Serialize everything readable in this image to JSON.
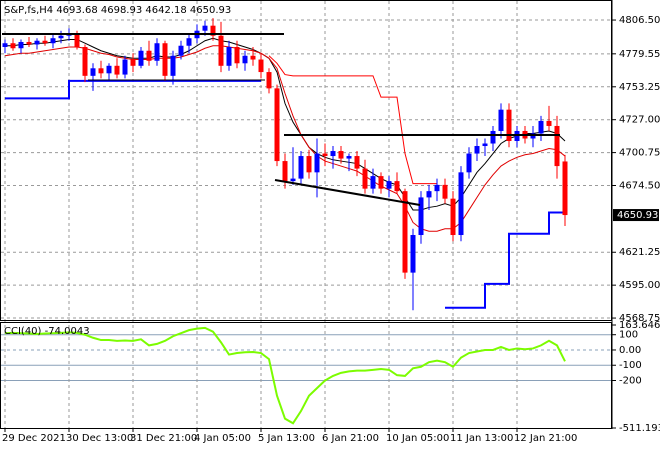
{
  "chart_data": {
    "type": "candlestick",
    "title": "S&P,fs,H4  4693.68 4698.93 4642.18 4650.93",
    "up_color": "#0000ff",
    "down_color": "#ff0000",
    "categories": [
      "29 Dec 2021",
      null,
      null,
      null,
      null,
      null,
      null,
      null,
      "30 Dec 13:00",
      null,
      null,
      null,
      null,
      null,
      null,
      null,
      "31 Dec 21:00",
      null,
      null,
      null,
      null,
      null,
      null,
      null,
      "4 Jan 05:00",
      null,
      null,
      null,
      null,
      null,
      null,
      null,
      "5 Jan 13:00",
      null,
      null,
      null,
      null,
      null,
      null,
      null,
      "6 Jan 21:00",
      null,
      null,
      null,
      null,
      null,
      null,
      null,
      "10 Jan 05:00",
      null,
      null,
      null,
      null,
      null,
      null,
      null,
      "11 Jan 13:00",
      null,
      null,
      null,
      null,
      null,
      null,
      null,
      "12 Jan 21:00",
      null,
      null,
      null,
      null,
      null,
      null
    ],
    "open": [
      4785,
      4788,
      4784,
      4789,
      4787,
      4790,
      4788,
      4792,
      4794,
      4796,
      4785,
      4762,
      4768,
      4764,
      4770,
      4763,
      4775,
      4770,
      4782,
      4774,
      4788,
      4762,
      4778,
      4786,
      4792,
      4798,
      4802,
      4794,
      4770,
      4785,
      4772,
      4778,
      4775,
      4765,
      4752,
      4694,
      4678,
      4680,
      4698,
      4685,
      4700,
      4698,
      4702,
      4696,
      4698,
      4688,
      4672,
      4682,
      4672,
      4678,
      4670,
      4605,
      4635,
      4665,
      4670,
      4675,
      4664,
      4635,
      4685,
      4700,
      4706,
      4708,
      4718,
      4735,
      4710,
      4718,
      4712,
      4716,
      4726,
      4722,
      4693.68
    ],
    "high": [
      4791,
      4792,
      4791,
      4793,
      4792,
      4794,
      4795,
      4798,
      4800,
      4798,
      4787,
      4772,
      4774,
      4772,
      4776,
      4778,
      4780,
      4785,
      4790,
      4792,
      4790,
      4782,
      4790,
      4795,
      4803,
      4806,
      4808,
      4805,
      4790,
      4790,
      4782,
      4785,
      4780,
      4768,
      4755,
      4700,
      4705,
      4702,
      4703,
      4712,
      4708,
      4706,
      4706,
      4700,
      4702,
      4695,
      4688,
      4685,
      4682,
      4685,
      4672,
      4640,
      4670,
      4675,
      4680,
      4680,
      4670,
      4690,
      4705,
      4712,
      4712,
      4722,
      4740,
      4740,
      4722,
      4722,
      4722,
      4730,
      4738,
      4730,
      4698.93
    ],
    "low": [
      4780,
      4782,
      4780,
      4785,
      4783,
      4786,
      4784,
      4788,
      4790,
      4783,
      4757,
      4750,
      4760,
      4758,
      4760,
      4760,
      4765,
      4768,
      4770,
      4770,
      4758,
      4755,
      4775,
      4780,
      4788,
      4794,
      4790,
      4765,
      4766,
      4768,
      4766,
      4770,
      4760,
      4748,
      4690,
      4672,
      4675,
      4676,
      4680,
      4665,
      4690,
      4688,
      4692,
      4686,
      4682,
      4668,
      4668,
      4668,
      4665,
      4668,
      4600,
      4575,
      4628,
      4655,
      4662,
      4660,
      4630,
      4630,
      4680,
      4694,
      4698,
      4702,
      4712,
      4705,
      4705,
      4708,
      4705,
      4710,
      4718,
      4680,
      4642.18
    ],
    "close": [
      4788,
      4784,
      4789,
      4787,
      4790,
      4788,
      4792,
      4794,
      4796,
      4785,
      4762,
      4768,
      4764,
      4770,
      4763,
      4775,
      4770,
      4782,
      4774,
      4788,
      4762,
      4778,
      4786,
      4792,
      4798,
      4802,
      4794,
      4770,
      4785,
      4772,
      4778,
      4775,
      4765,
      4752,
      4694,
      4678,
      4680,
      4698,
      4685,
      4700,
      4698,
      4702,
      4696,
      4698,
      4688,
      4672,
      4682,
      4672,
      4678,
      4670,
      4605,
      4635,
      4665,
      4670,
      4675,
      4664,
      4635,
      4685,
      4700,
      4706,
      4708,
      4718,
      4735,
      4710,
      4718,
      4712,
      4716,
      4726,
      4722,
      4690,
      4650.93
    ],
    "lines": [
      {
        "color": "#000000",
        "values": [
          4786,
          4786,
          4787,
          4787,
          4788,
          4788,
          4789,
          4790,
          4791,
          4791,
          4788,
          4785,
          4782,
          4780,
          4778,
          4777,
          4776,
          4776,
          4776,
          4778,
          4777,
          4777,
          4779,
          4782,
          4786,
          4790,
          4792,
          4790,
          4789,
          4787,
          4785,
          4783,
          4780,
          4776,
          4765,
          4740,
          4725,
          4715,
          4705,
          4700,
          4697,
          4695,
          4694,
          4693,
          4692,
          4688,
          4684,
          4680,
          4677,
          4675,
          4665,
          4655,
          4655,
          4657,
          4658,
          4660,
          4658,
          4665,
          4675,
          4685,
          4692,
          4700,
          4708,
          4712,
          4714,
          4716,
          4716,
          4717,
          4718,
          4716,
          4710
        ]
      },
      {
        "color": "#e00000",
        "values": [
          4778,
          4779,
          4780,
          4780,
          4781,
          4782,
          4783,
          4784,
          4785,
          4785,
          4784,
          4782,
          4780,
          4779,
          4777,
          4776,
          4775,
          4775,
          4775,
          4776,
          4776,
          4776,
          4777,
          4779,
          4781,
          4784,
          4786,
          4786,
          4785,
          4784,
          4783,
          4782,
          4780,
          4776,
          4768,
          4748,
          4730,
          4715,
          4705,
          4698,
          4694,
          4692,
          4690,
          4688,
          4686,
          4682,
          4678,
          4674,
          4671,
          4668,
          4658,
          4645,
          4640,
          4638,
          4638,
          4640,
          4640,
          4645,
          4655,
          4665,
          4675,
          4683,
          4690,
          4694,
          4697,
          4699,
          4700,
          4702,
          4704,
          4703,
          4698
        ]
      },
      {
        "color": "#0000ff",
        "step": true,
        "values": [
          4744,
          4744,
          4744,
          4744,
          4744,
          4744,
          4744,
          4744,
          4758,
          4758,
          4758,
          4758,
          4758,
          4758,
          4758,
          4758,
          4758,
          4758,
          4758,
          4758,
          4758,
          4758,
          4758,
          4758,
          4758,
          4758,
          4758,
          4758,
          4758,
          4758,
          4758,
          4758,
          4758,
          null,
          null,
          null,
          null,
          null,
          null,
          null,
          null,
          null,
          null,
          null,
          null,
          null,
          null,
          null,
          null,
          null,
          null,
          null,
          null,
          null,
          null,
          4577,
          4577,
          4577,
          4577,
          4577,
          4596,
          4596,
          4596,
          4636,
          4636,
          4636,
          4636,
          4636,
          4653,
          4653,
          4653
        ]
      },
      {
        "color": "#ff0000",
        "values": [
          null,
          null,
          null,
          null,
          null,
          null,
          null,
          null,
          null,
          null,
          null,
          null,
          null,
          null,
          null,
          null,
          null,
          null,
          null,
          null,
          null,
          null,
          null,
          null,
          null,
          null,
          null,
          null,
          null,
          null,
          null,
          null,
          null,
          4778,
          4772,
          4763,
          4762,
          4762,
          4762,
          4762,
          4762,
          4762,
          4762,
          4762,
          4762,
          4762,
          4762,
          4745,
          4745,
          4745,
          4700,
          4676,
          4676,
          4676,
          4676,
          null,
          null,
          null,
          null,
          null,
          null,
          null,
          null,
          null,
          null,
          null,
          null,
          null,
          null,
          null,
          null
        ]
      }
    ],
    "current_price": 4650.93,
    "ylim": [
      4567.2,
      4819.3
    ],
    "yticks": [
      {
        "value": 4806.5,
        "label": "4806.50"
      },
      {
        "value": 4779.55,
        "label": "4779.55"
      },
      {
        "value": 4753.25,
        "label": "4753.25"
      },
      {
        "value": 4727,
        "label": "4727.00"
      },
      {
        "value": 4700.75,
        "label": "4700.75"
      },
      {
        "value": 4674.5,
        "label": "4674.50"
      },
      {
        "value": 4621.25,
        "label": "4621.25"
      },
      {
        "value": 4595,
        "label": "4595.00"
      },
      {
        "value": 4568.75,
        "label": "4568.75"
      }
    ],
    "grid": true,
    "cci": {
      "label": "CCI(40) -74.0043",
      "color": "#7cfc00",
      "axis": "y2",
      "values": [
        110,
        112,
        110,
        108,
        105,
        108,
        110,
        112,
        115,
        112,
        100,
        80,
        65,
        65,
        60,
        62,
        60,
        70,
        30,
        40,
        60,
        90,
        110,
        130,
        140,
        145,
        120,
        50,
        -30,
        -20,
        -15,
        -13,
        -20,
        -60,
        -300,
        -450,
        -480,
        -400,
        -300,
        -250,
        -200,
        -170,
        -150,
        -140,
        -135,
        -135,
        -130,
        -125,
        -130,
        -165,
        -170,
        -120,
        -110,
        -80,
        -70,
        -80,
        -110,
        -50,
        -20,
        -10,
        0,
        0,
        20,
        0,
        10,
        5,
        10,
        30,
        60,
        30,
        -74.0043
      ]
    },
    "y2lim": [
      -511.1939,
      163.6468
    ],
    "y2ticks": [
      {
        "value": 163.6468,
        "label": "163.6468"
      },
      100,
      {
        "value": 0,
        "label": "0.00"
      },
      -100,
      -200,
      {
        "value": -511.1939,
        "label": "-511.1939"
      }
    ]
  }
}
